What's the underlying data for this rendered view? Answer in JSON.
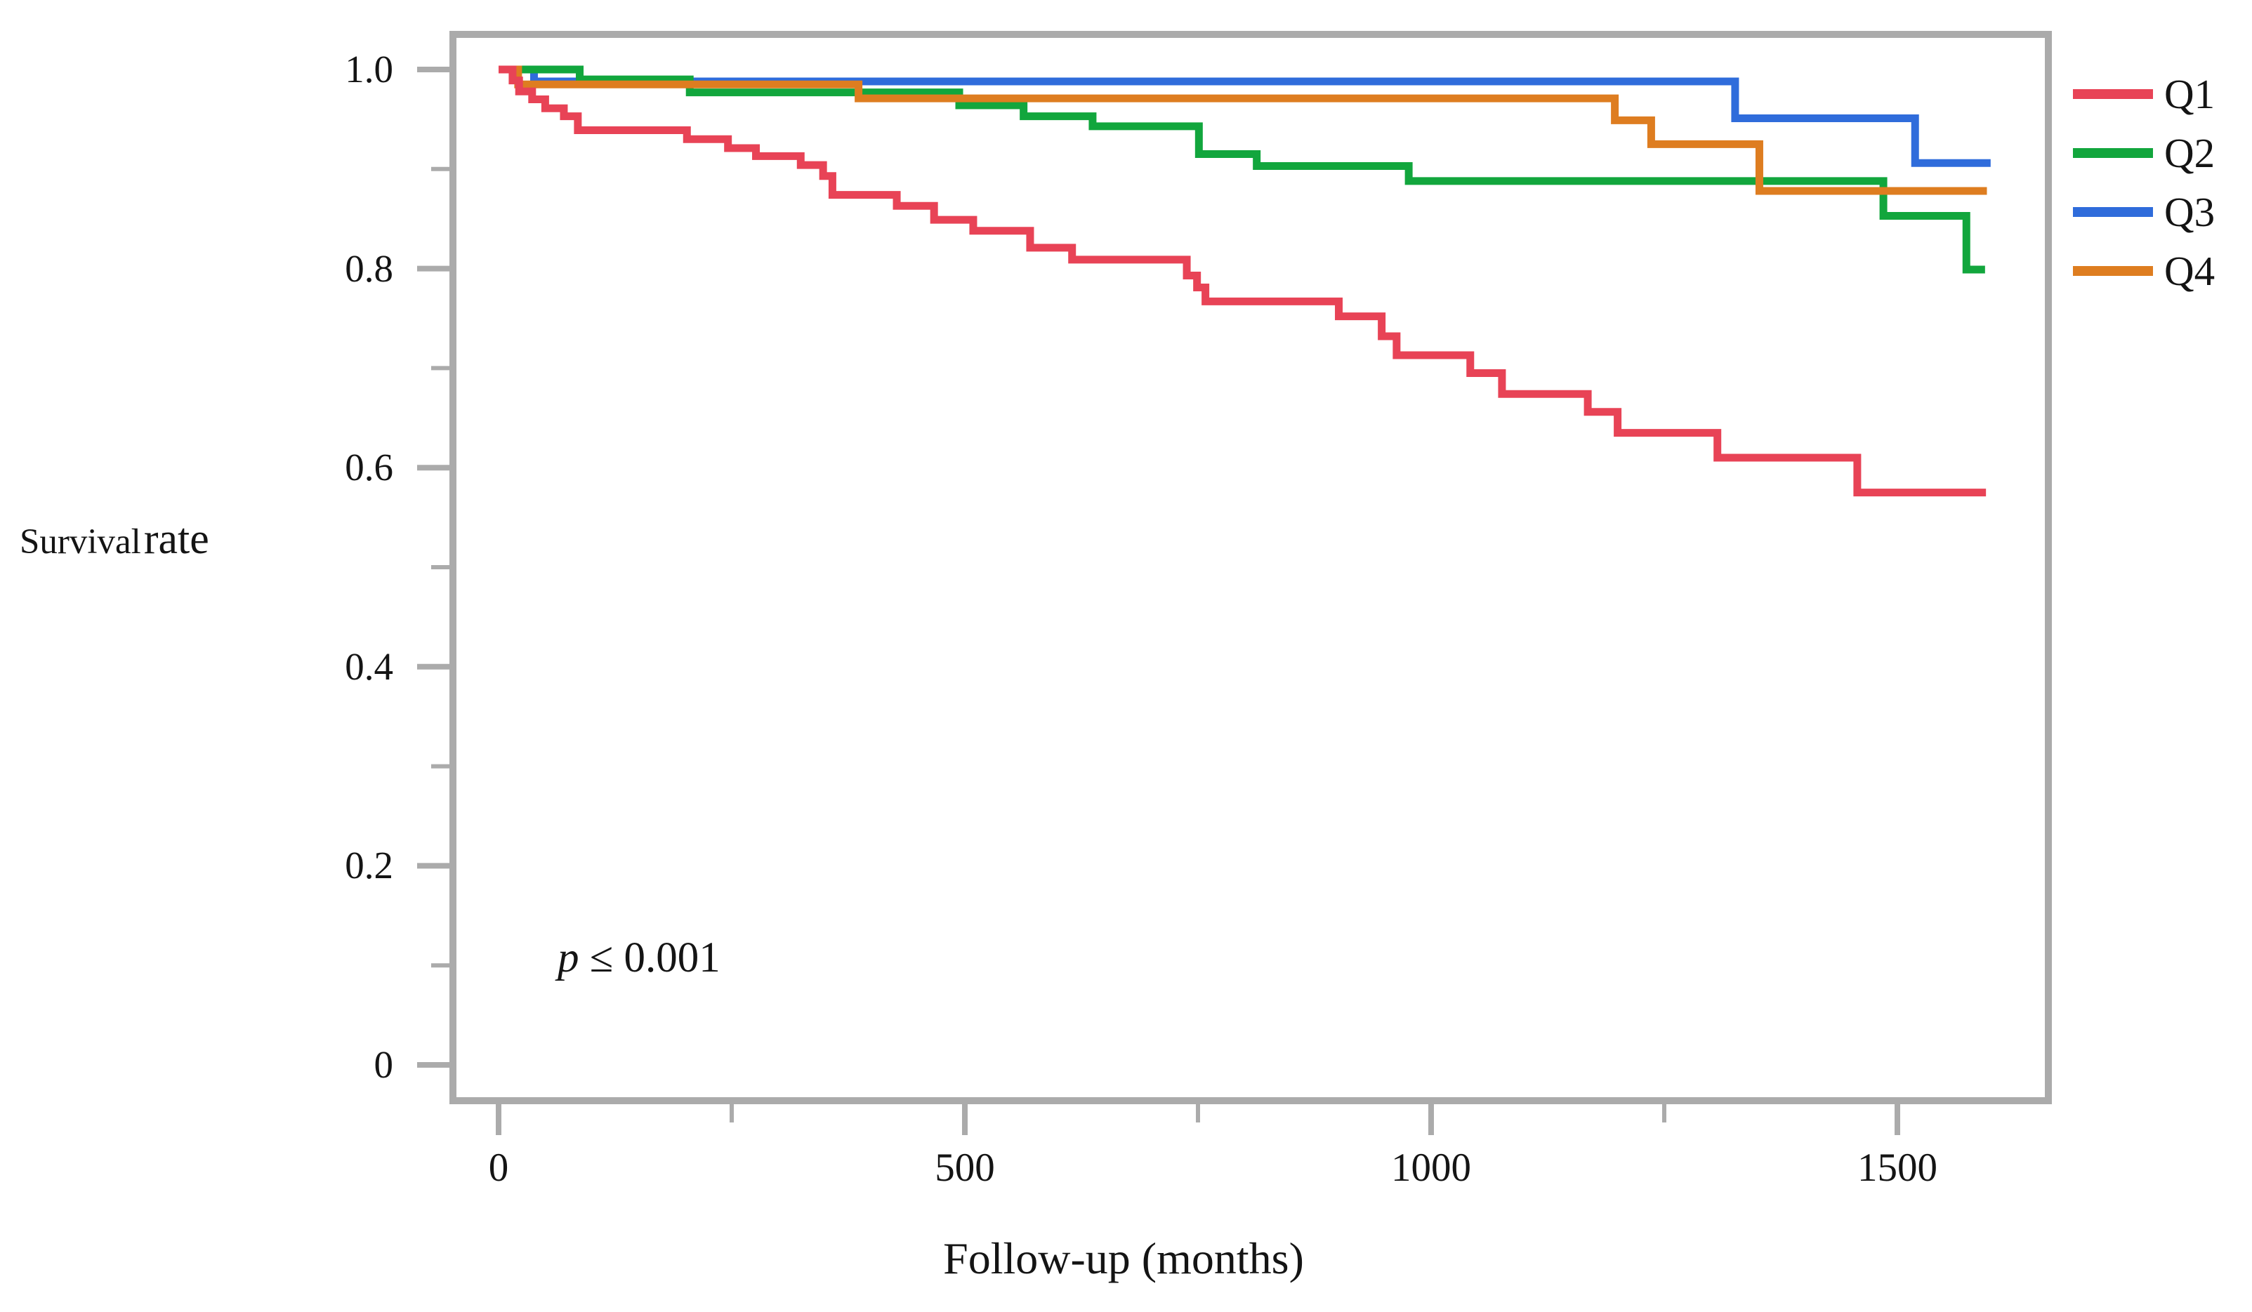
{
  "chart_data": {
    "type": "line",
    "subtype": "kaplan-meier-step",
    "title": "",
    "xlabel": "Follow-up (months)",
    "ylabel": "Survival rate",
    "annotation": "p ≤ 0.001",
    "grid": false,
    "legend_position": "outside-top-right",
    "axis_color": "#ababab",
    "text_color": "#141414",
    "xlim": [
      -55,
      1670
    ],
    "ylim": [
      -0.04,
      1.04
    ],
    "x_ticks": [
      {
        "value": 0,
        "label": "0"
      },
      {
        "value": 500,
        "label": "500"
      },
      {
        "value": 1000,
        "label": "1000"
      },
      {
        "value": 1500,
        "label": "1500"
      }
    ],
    "x_minor_ticks": [
      250,
      750,
      1250
    ],
    "y_ticks": [
      {
        "value": 1.0,
        "label": "1.0"
      },
      {
        "value": 0.8,
        "label": "0.8"
      },
      {
        "value": 0.6,
        "label": "0.6"
      },
      {
        "value": 0.4,
        "label": "0.4"
      },
      {
        "value": 0.2,
        "label": "0.2"
      },
      {
        "value": 0.0,
        "label": "0"
      }
    ],
    "y_minor_ticks": [
      0.1,
      0.3,
      0.5,
      0.7,
      0.9
    ],
    "series": [
      {
        "name": "Q1",
        "color": "#e84356",
        "start": [
          0,
          1.0
        ],
        "end_time": 1595,
        "steps": [
          [
            15,
            0.989
          ],
          [
            22,
            0.978
          ],
          [
            36,
            0.97
          ],
          [
            50,
            0.961
          ],
          [
            70,
            0.953
          ],
          [
            85,
            0.939
          ],
          [
            202,
            0.93
          ],
          [
            246,
            0.921
          ],
          [
            276,
            0.913
          ],
          [
            324,
            0.904
          ],
          [
            348,
            0.893
          ],
          [
            358,
            0.874
          ],
          [
            427,
            0.863
          ],
          [
            467,
            0.849
          ],
          [
            509,
            0.838
          ],
          [
            570,
            0.821
          ],
          [
            615,
            0.809
          ],
          [
            738,
            0.793
          ],
          [
            749,
            0.781
          ],
          [
            758,
            0.767
          ],
          [
            901,
            0.752
          ],
          [
            947,
            0.732
          ],
          [
            963,
            0.713
          ],
          [
            1042,
            0.695
          ],
          [
            1076,
            0.674
          ],
          [
            1168,
            0.656
          ],
          [
            1200,
            0.635
          ],
          [
            1307,
            0.61
          ],
          [
            1457,
            0.575
          ]
        ]
      },
      {
        "name": "Q2",
        "color": "#12a63d",
        "start": [
          0,
          1.0
        ],
        "end_time": 1594,
        "steps": [
          [
            87,
            0.99
          ],
          [
            205,
            0.977
          ],
          [
            494,
            0.964
          ],
          [
            563,
            0.953
          ],
          [
            637,
            0.943
          ],
          [
            751,
            0.915
          ],
          [
            813,
            0.903
          ],
          [
            976,
            0.888
          ],
          [
            1485,
            0.853
          ],
          [
            1574,
            0.799
          ]
        ]
      },
      {
        "name": "Q3",
        "color": "#2f6cdb",
        "start": [
          0,
          1.0
        ],
        "end_time": 1600,
        "steps": [
          [
            38,
            0.988
          ],
          [
            1326,
            0.951
          ],
          [
            1519,
            0.906
          ]
        ]
      },
      {
        "name": "Q4",
        "color": "#de7d20",
        "start": [
          0,
          1.0
        ],
        "end_time": 1596,
        "steps": [
          [
            21,
            0.985
          ],
          [
            386,
            0.971
          ],
          [
            1197,
            0.949
          ],
          [
            1236,
            0.925
          ],
          [
            1352,
            0.878
          ]
        ]
      }
    ],
    "legend": [
      {
        "label": "Q1",
        "color": "#e84356"
      },
      {
        "label": "Q2",
        "color": "#12a63d"
      },
      {
        "label": "Q3",
        "color": "#2f6cdb"
      },
      {
        "label": "Q4",
        "color": "#de7d20"
      }
    ]
  }
}
